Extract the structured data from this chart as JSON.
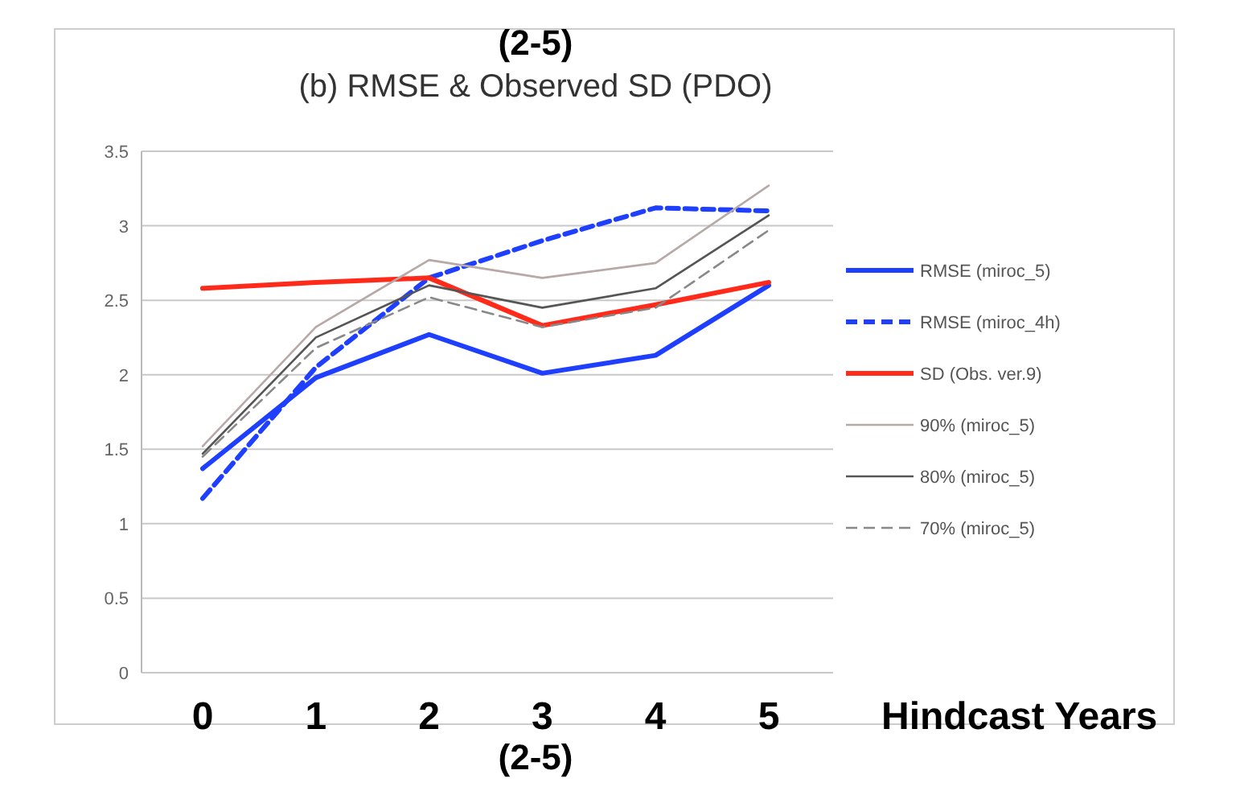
{
  "chart_data": {
    "type": "line",
    "title": "(b) RMSE & Observed SD (PDO)",
    "xlabel": "Hindcast Years",
    "annotations": [
      "(2-5)",
      "(2-5)"
    ],
    "categories": [
      "0",
      "1",
      "2",
      "3",
      "4",
      "5"
    ],
    "ylim": [
      0,
      3.5
    ],
    "yticks": [
      0,
      0.5,
      1,
      1.5,
      2,
      2.5,
      3,
      3.5
    ],
    "grid": "y",
    "legend": "right",
    "marker": "none",
    "series": [
      {
        "name": "RMSE (miroc_5)",
        "color": "#1f3fff",
        "values": [
          1.37,
          1.98,
          2.27,
          2.01,
          2.13,
          2.6
        ],
        "line_style": "solid"
      },
      {
        "name": "RMSE (miroc_4h)",
        "color": "#1f3fff",
        "values": [
          1.17,
          2.05,
          2.65,
          2.9,
          3.12,
          3.1
        ],
        "line_style": "dashed"
      },
      {
        "name": "SD (Obs. ver.9)",
        "color": "#ff2a1a",
        "values": [
          2.58,
          2.62,
          2.65,
          2.33,
          2.47,
          2.62
        ],
        "line_style": "solid"
      },
      {
        "name": "90% (miroc_5)",
        "color": "#b8a8a8",
        "values": [
          1.52,
          2.32,
          2.77,
          2.65,
          2.75,
          3.27
        ],
        "line_style": "solid"
      },
      {
        "name": "80% (miroc_5)",
        "color": "#555555",
        "values": [
          1.47,
          2.25,
          2.6,
          2.45,
          2.58,
          3.07
        ],
        "line_style": "solid"
      },
      {
        "name": "70% (miroc_5)",
        "color": "#888888",
        "values": [
          1.45,
          2.18,
          2.52,
          2.32,
          2.45,
          2.97
        ],
        "line_style": "dashed"
      }
    ]
  }
}
